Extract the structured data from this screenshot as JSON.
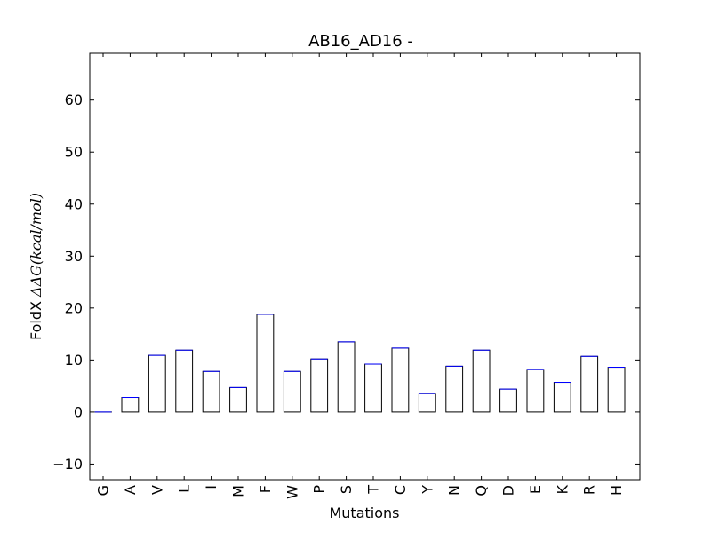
{
  "chart_data": {
    "type": "bar",
    "title": "AB16_AD16 -",
    "xlabel": "Mutations",
    "ylabel": "FoldX ΔΔG(kcal/mol)",
    "ylabel_parts": {
      "prefix": "FoldX ",
      "math": "ΔΔG(kcal/mol)"
    },
    "categories": [
      "G",
      "A",
      "V",
      "L",
      "I",
      "M",
      "F",
      "W",
      "P",
      "S",
      "T",
      "C",
      "Y",
      "N",
      "Q",
      "D",
      "E",
      "K",
      "R",
      "H"
    ],
    "values": [
      0.0,
      2.8,
      10.9,
      11.9,
      7.8,
      4.7,
      18.8,
      7.8,
      10.2,
      13.5,
      9.2,
      12.3,
      3.6,
      8.8,
      11.9,
      4.4,
      8.2,
      5.7,
      10.7,
      8.6
    ],
    "ylim": [
      -13,
      69
    ],
    "yticks": [
      -10,
      0,
      10,
      20,
      30,
      40,
      50,
      60
    ],
    "ytick_labels": [
      "−10",
      "0",
      "10",
      "20",
      "30",
      "40",
      "50",
      "60"
    ],
    "grid": false,
    "bar_fill": "#ffffff",
    "bar_edge": "#000000",
    "bar_top_edge": "#0000ff"
  }
}
